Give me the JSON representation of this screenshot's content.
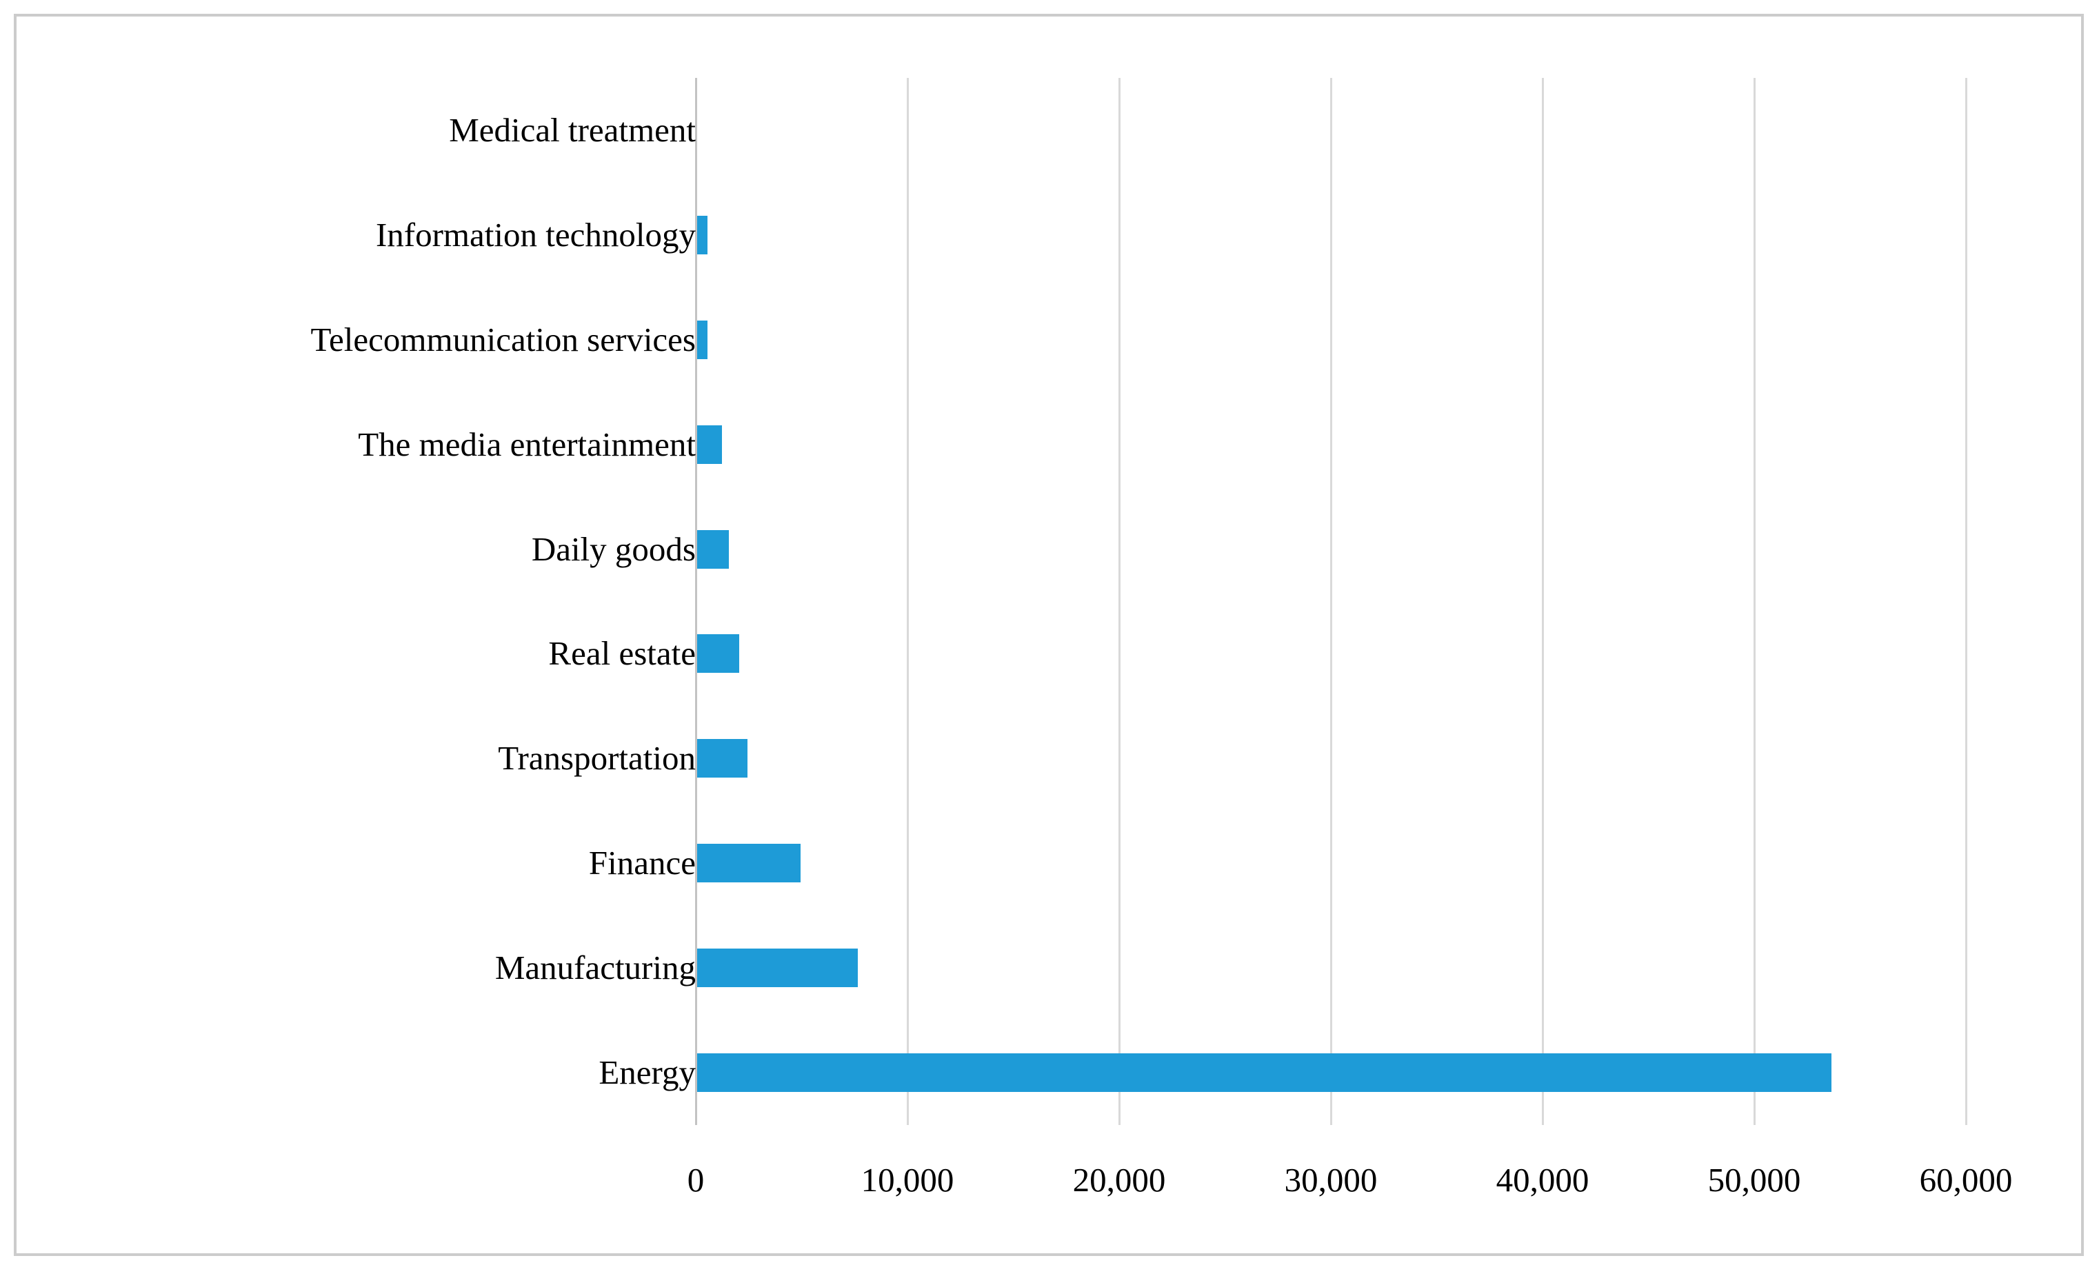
{
  "chart_data": {
    "type": "bar",
    "orientation": "horizontal",
    "title": "",
    "xlabel": "",
    "ylabel": "",
    "categories_top_to_bottom": [
      "Medical treatment",
      "Information technology",
      "Telecommunication services",
      "The media entertainment",
      "Daily goods",
      "Real estate",
      "Transportation",
      "Finance",
      "Manufacturing",
      "Energy"
    ],
    "values": [
      0,
      500,
      500,
      1200,
      1500,
      2000,
      2400,
      4900,
      7600,
      53600
    ],
    "xlim": [
      0,
      60000
    ],
    "x_tick_step": 10000,
    "x_tick_labels": [
      "0",
      "10,000",
      "20,000",
      "30,000",
      "40,000",
      "50,000",
      "60,000"
    ],
    "grid": "vertical-gridlines-on",
    "legend_position": "none",
    "colors": {
      "bar": "#1e9bd7",
      "gridline": "#d9d9d9",
      "zero_axis_line": "#c3c3c3",
      "frame_border": "#cccccc",
      "text": "#000000",
      "background": "#ffffff"
    }
  }
}
